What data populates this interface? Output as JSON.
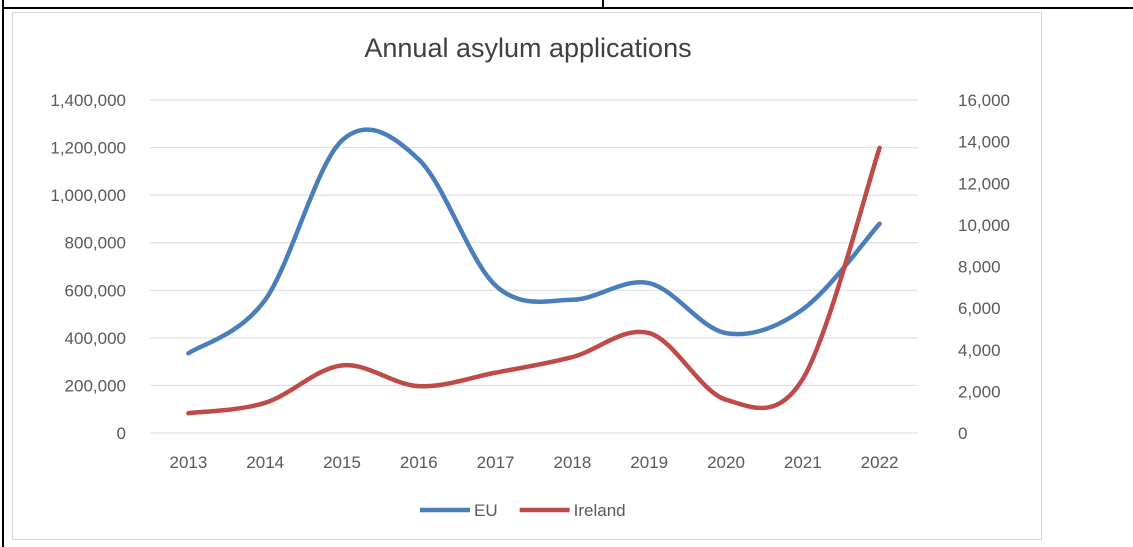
{
  "chart_data": {
    "type": "line",
    "title": "Annual asylum applications",
    "categories": [
      "2013",
      "2014",
      "2015",
      "2016",
      "2017",
      "2018",
      "2019",
      "2020",
      "2021",
      "2022"
    ],
    "left_axis": {
      "ylim": [
        0,
        1400000
      ],
      "ticks": [
        0,
        200000,
        400000,
        600000,
        800000,
        1000000,
        1200000,
        1400000
      ],
      "tick_labels": [
        "0",
        "200,000",
        "400,000",
        "600,000",
        "800,000",
        "1,000,000",
        "1,200,000",
        "1,400,000"
      ]
    },
    "right_axis": {
      "ylim": [
        0,
        16000
      ],
      "ticks": [
        0,
        2000,
        4000,
        6000,
        8000,
        10000,
        12000,
        14000,
        16000
      ],
      "tick_labels": [
        "0",
        "2,000",
        "4,000",
        "6,000",
        "8,000",
        "10,000",
        "12,000",
        "14,000",
        "16,000"
      ]
    },
    "series": [
      {
        "name": "EU",
        "axis": "left",
        "color": "#4a7ebb",
        "values": [
          335000,
          560000,
          1230000,
          1150000,
          620000,
          560000,
          630000,
          420000,
          520000,
          880000
        ]
      },
      {
        "name": "Ireland",
        "axis": "right",
        "color": "#be4b48",
        "values": [
          950,
          1450,
          3250,
          2250,
          2900,
          3650,
          4800,
          1600,
          2600,
          13700
        ]
      }
    ],
    "grid": true,
    "legend": "bottom"
  }
}
